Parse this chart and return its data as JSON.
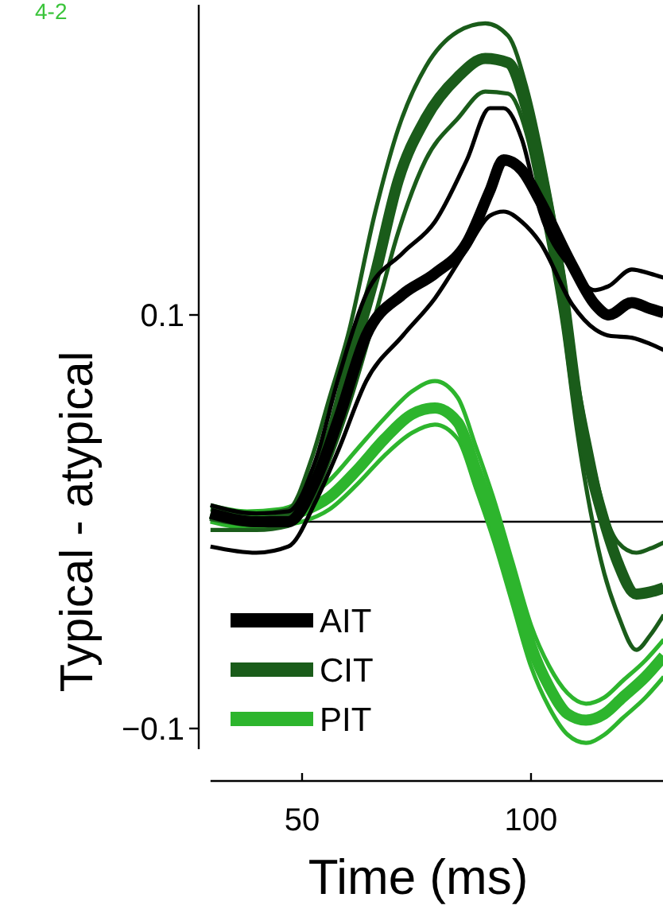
{
  "chart_data": {
    "type": "line",
    "xlabel": "Time (ms)",
    "ylabel": "Typical - atypical",
    "annotations": [
      "4-2"
    ],
    "xlim": [
      30,
      129
    ],
    "ylim": [
      -0.11,
      0.25
    ],
    "xticks": [
      50,
      100
    ],
    "yticks": [
      0.1,
      {
        "value": -0.1,
        "label": "−0.1"
      }
    ],
    "legend": "bottom left",
    "grid": false,
    "marker": "none",
    "line_style": "solid",
    "ref_lines": [
      {
        "axis": "y",
        "value": 0,
        "color": "#000000"
      }
    ],
    "series": [
      {
        "name": "AIT",
        "color": "#000000",
        "x": [
          30,
          40,
          47,
          53,
          58,
          64,
          72,
          79,
          86,
          91,
          94,
          98,
          102,
          109,
          114,
          117,
          122,
          126,
          129
        ],
        "values": [
          0.004,
          0.0,
          0.0,
          0.02,
          0.05,
          0.09,
          0.11,
          0.12,
          0.135,
          0.16,
          0.175,
          0.17,
          0.155,
          0.124,
          0.105,
          0.1,
          0.106,
          0.103,
          0.101
        ]
      },
      {
        "color": "#000000",
        "x": [
          30,
          40,
          47,
          53,
          58,
          64,
          72,
          79,
          86,
          91,
          94,
          98,
          102,
          109,
          114,
          117,
          122,
          126,
          129
        ],
        "values": [
          0.008,
          0.004,
          0.005,
          0.03,
          0.07,
          0.11,
          0.13,
          0.145,
          0.175,
          0.2,
          0.2,
          0.185,
          0.15,
          0.122,
          0.112,
          0.114,
          0.122,
          0.12,
          0.118
        ]
      },
      {
        "color": "#000000",
        "x": [
          30,
          40,
          47,
          53,
          58,
          64,
          72,
          79,
          86,
          91,
          94,
          98,
          102,
          109,
          114,
          117,
          122,
          126,
          129
        ],
        "values": [
          -0.012,
          -0.015,
          -0.012,
          0.01,
          0.035,
          0.068,
          0.09,
          0.108,
          0.132,
          0.148,
          0.15,
          0.145,
          0.135,
          0.105,
          0.093,
          0.09,
          0.089,
          0.086,
          0.083
        ]
      },
      {
        "name": "CIT",
        "color": "#1a5c1a",
        "x": [
          30,
          40,
          47,
          52,
          56,
          60,
          66,
          71,
          77,
          84,
          90,
          95,
          99,
          103,
          107,
          110,
          113,
          116,
          119,
          123,
          126,
          129
        ],
        "values": [
          0.003,
          0.0,
          0.002,
          0.02,
          0.04,
          0.073,
          0.12,
          0.165,
          0.195,
          0.215,
          0.224,
          0.222,
          0.2,
          0.16,
          0.11,
          0.06,
          0.025,
          0.0,
          -0.02,
          -0.035,
          -0.034,
          -0.032
        ]
      },
      {
        "color": "#1a5c1a",
        "x": [
          30,
          40,
          47,
          52,
          56,
          60,
          66,
          71,
          77,
          84,
          90,
          95,
          99,
          103,
          107,
          110,
          113,
          116,
          119,
          123,
          126,
          129
        ],
        "values": [
          0.006,
          0.004,
          0.006,
          0.03,
          0.06,
          0.09,
          0.15,
          0.19,
          0.22,
          0.237,
          0.241,
          0.235,
          0.21,
          0.17,
          0.12,
          0.07,
          0.035,
          0.005,
          -0.01,
          -0.015,
          -0.013,
          -0.01
        ]
      },
      {
        "color": "#1a5c1a",
        "x": [
          30,
          40,
          47,
          52,
          56,
          60,
          66,
          71,
          77,
          84,
          90,
          95,
          99,
          103,
          107,
          110,
          113,
          116,
          119,
          123,
          126,
          129
        ],
        "values": [
          -0.004,
          -0.004,
          -0.002,
          0.01,
          0.03,
          0.055,
          0.1,
          0.14,
          0.175,
          0.195,
          0.208,
          0.207,
          0.188,
          0.145,
          0.095,
          0.045,
          0.005,
          -0.025,
          -0.045,
          -0.062,
          -0.055,
          -0.045
        ]
      },
      {
        "name": "PIT",
        "color": "#2db52d",
        "x": [
          30,
          38,
          45,
          50,
          56,
          62,
          68,
          74,
          79,
          84,
          88,
          92,
          96,
          100,
          104,
          108,
          112,
          116,
          120,
          125,
          129
        ],
        "values": [
          0.004,
          0.001,
          0.002,
          0.005,
          0.012,
          0.025,
          0.04,
          0.052,
          0.055,
          0.048,
          0.025,
          0.0,
          -0.03,
          -0.06,
          -0.08,
          -0.093,
          -0.096,
          -0.093,
          -0.085,
          -0.075,
          -0.065
        ]
      },
      {
        "color": "#2db52d",
        "x": [
          30,
          38,
          45,
          50,
          56,
          62,
          68,
          74,
          79,
          84,
          88,
          92,
          96,
          100,
          104,
          108,
          112,
          116,
          120,
          125,
          129
        ],
        "values": [
          0.008,
          0.005,
          0.006,
          0.01,
          0.02,
          0.035,
          0.05,
          0.063,
          0.068,
          0.06,
          0.036,
          0.01,
          -0.02,
          -0.05,
          -0.07,
          -0.083,
          -0.088,
          -0.085,
          -0.077,
          -0.067,
          -0.057
        ]
      },
      {
        "color": "#2db52d",
        "x": [
          30,
          38,
          45,
          50,
          56,
          62,
          68,
          74,
          79,
          84,
          88,
          92,
          96,
          100,
          104,
          108,
          112,
          116,
          120,
          125,
          129
        ],
        "values": [
          0.0,
          -0.003,
          -0.002,
          0.0,
          0.006,
          0.018,
          0.032,
          0.043,
          0.047,
          0.04,
          0.016,
          -0.01,
          -0.04,
          -0.07,
          -0.09,
          -0.103,
          -0.107,
          -0.103,
          -0.095,
          -0.085,
          -0.075
        ]
      }
    ]
  }
}
